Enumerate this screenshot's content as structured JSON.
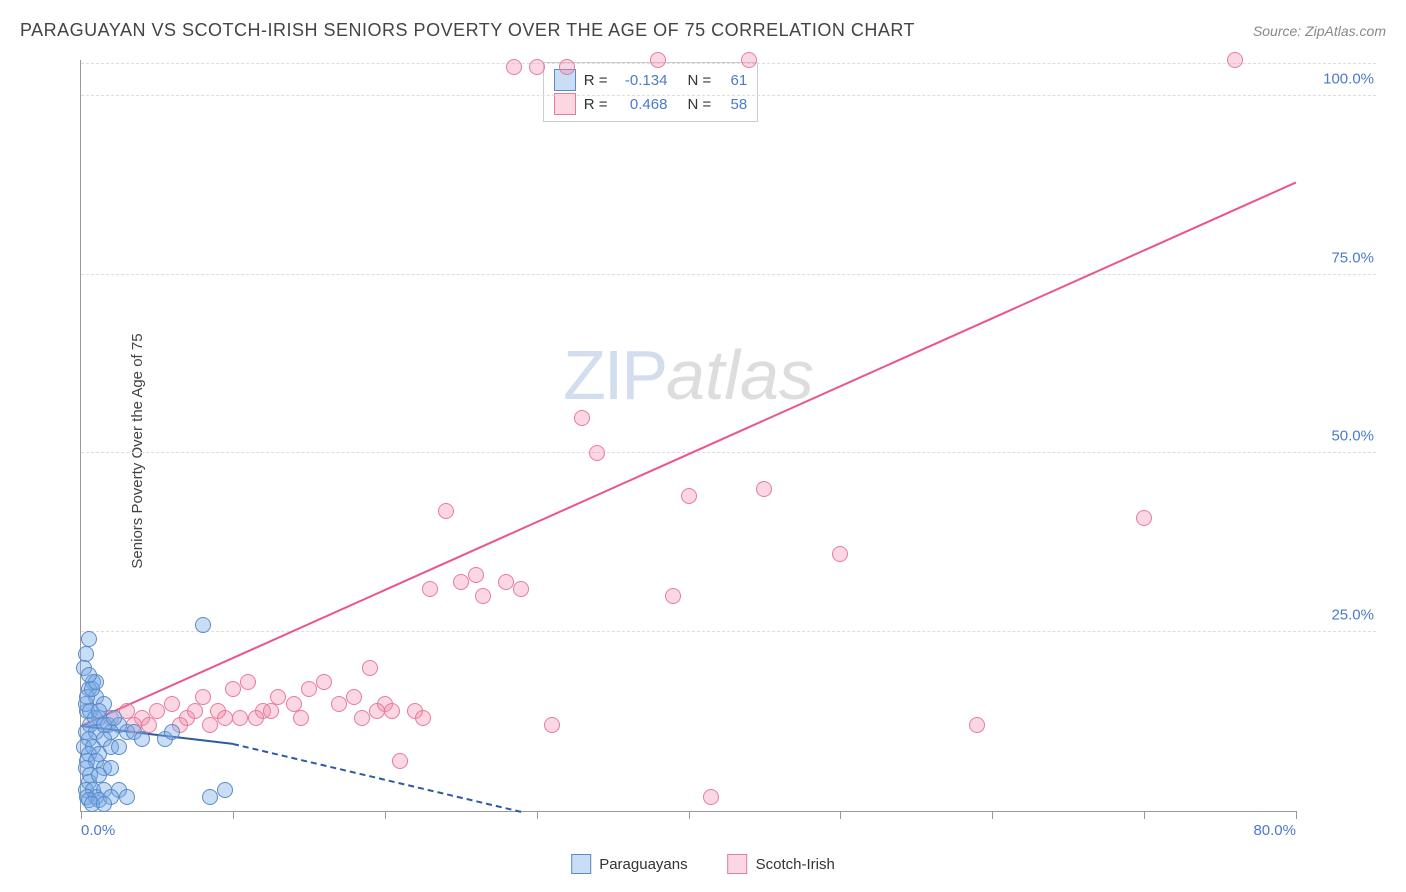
{
  "header": {
    "title": "PARAGUAYAN VS SCOTCH-IRISH SENIORS POVERTY OVER THE AGE OF 75 CORRELATION CHART",
    "source": "Source: ZipAtlas.com"
  },
  "chart": {
    "type": "scatter",
    "y_axis_label": "Seniors Poverty Over the Age of 75",
    "xlim": [
      0,
      80
    ],
    "ylim": [
      0,
      105
    ],
    "x_ticks": [
      0,
      10,
      20,
      30,
      40,
      50,
      60,
      70,
      80
    ],
    "x_tick_labels": {
      "0": "0.0%",
      "80": "80.0%"
    },
    "y_ticks": [
      25,
      50,
      75,
      100
    ],
    "y_tick_labels": {
      "25": "25.0%",
      "50": "50.0%",
      "75": "75.0%",
      "100": "100.0%"
    },
    "grid_color": "#dddddd",
    "axis_color": "#999999",
    "background_color": "#ffffff",
    "tick_label_color": "#4a7bc8",
    "tick_label_fontsize": 15,
    "axis_label_fontsize": 15,
    "marker_radius": 8,
    "marker_border_width": 1,
    "watermark": {
      "zip": "ZIP",
      "atlas": "atlas"
    }
  },
  "series": {
    "blue": {
      "label": "Paraguayans",
      "fill": "rgba(120,170,230,0.4)",
      "stroke": "#5a8ac8",
      "trend_color": "#2d5aa0",
      "trend": {
        "x1": 0,
        "y1": 12,
        "x2": 10,
        "y2": 9.5
      },
      "trend_dashed": {
        "x1": 10,
        "y1": 9.5,
        "x2": 29,
        "y2": 0
      },
      "points": [
        [
          0.3,
          22
        ],
        [
          0.5,
          24
        ],
        [
          0.2,
          20
        ],
        [
          0.8,
          18
        ],
        [
          0.5,
          17
        ],
        [
          1.0,
          16
        ],
        [
          1.5,
          15
        ],
        [
          0.4,
          14
        ],
        [
          1.2,
          13
        ],
        [
          0.6,
          12
        ],
        [
          1.8,
          12
        ],
        [
          2.5,
          12
        ],
        [
          0.3,
          11
        ],
        [
          1.0,
          11
        ],
        [
          2.0,
          11
        ],
        [
          0.5,
          10
        ],
        [
          1.5,
          10
        ],
        [
          3.0,
          11
        ],
        [
          0.2,
          9
        ],
        [
          0.8,
          9
        ],
        [
          2.0,
          9
        ],
        [
          0.5,
          8
        ],
        [
          1.2,
          8
        ],
        [
          2.5,
          9
        ],
        [
          0.4,
          7
        ],
        [
          1.0,
          7
        ],
        [
          0.3,
          6
        ],
        [
          1.5,
          6
        ],
        [
          0.6,
          5
        ],
        [
          2.0,
          6
        ],
        [
          0.5,
          4
        ],
        [
          1.2,
          5
        ],
        [
          0.3,
          3
        ],
        [
          0.8,
          3
        ],
        [
          1.5,
          3
        ],
        [
          0.4,
          2
        ],
        [
          1.0,
          2
        ],
        [
          2.5,
          3
        ],
        [
          0.5,
          1.5
        ],
        [
          1.2,
          1.5
        ],
        [
          2.0,
          2
        ],
        [
          0.7,
          1
        ],
        [
          1.5,
          1
        ],
        [
          3.0,
          2
        ],
        [
          0.3,
          15
        ],
        [
          0.6,
          14
        ],
        [
          0.9,
          13
        ],
        [
          1.2,
          14
        ],
        [
          1.5,
          12
        ],
        [
          2.2,
          13
        ],
        [
          0.4,
          16
        ],
        [
          0.7,
          17
        ],
        [
          1.0,
          18
        ],
        [
          0.5,
          19
        ],
        [
          3.5,
          11
        ],
        [
          4.0,
          10
        ],
        [
          5.5,
          10
        ],
        [
          6.0,
          11
        ],
        [
          8.0,
          26
        ],
        [
          8.5,
          2
        ],
        [
          9.5,
          3
        ]
      ]
    },
    "pink": {
      "label": "Scotch-Irish",
      "fill": "rgba(240,140,170,0.35)",
      "stroke": "#e87aa0",
      "trend_color": "#e85590",
      "trend": {
        "x1": 0,
        "y1": 12,
        "x2": 80,
        "y2": 88
      },
      "points": [
        [
          2,
          13
        ],
        [
          3,
          14
        ],
        [
          4,
          13
        ],
        [
          3.5,
          12
        ],
        [
          5,
          14
        ],
        [
          6,
          15
        ],
        [
          4.5,
          12
        ],
        [
          7,
          13
        ],
        [
          8,
          16
        ],
        [
          6.5,
          12
        ],
        [
          9,
          14
        ],
        [
          10,
          17
        ],
        [
          8.5,
          12
        ],
        [
          11,
          18
        ],
        [
          7.5,
          14
        ],
        [
          12,
          14
        ],
        [
          13,
          16
        ],
        [
          10.5,
          13
        ],
        [
          14,
          15
        ],
        [
          9.5,
          13
        ],
        [
          15,
          17
        ],
        [
          16,
          18
        ],
        [
          12.5,
          14
        ],
        [
          17,
          15
        ],
        [
          14.5,
          13
        ],
        [
          18,
          16
        ],
        [
          11.5,
          13
        ],
        [
          19,
          20
        ],
        [
          20,
          15
        ],
        [
          21,
          7
        ],
        [
          22,
          14
        ],
        [
          18.5,
          13
        ],
        [
          23,
          31
        ],
        [
          25,
          32
        ],
        [
          20.5,
          14
        ],
        [
          26,
          33
        ],
        [
          22.5,
          13
        ],
        [
          19.5,
          14
        ],
        [
          24,
          42
        ],
        [
          28,
          32
        ],
        [
          29,
          31
        ],
        [
          26.5,
          30
        ],
        [
          28.5,
          104
        ],
        [
          30,
          104
        ],
        [
          32,
          104
        ],
        [
          31,
          12
        ],
        [
          33,
          55
        ],
        [
          34,
          50
        ],
        [
          38,
          105
        ],
        [
          39,
          30
        ],
        [
          40,
          44
        ],
        [
          41.5,
          2
        ],
        [
          44,
          105
        ],
        [
          45,
          45
        ],
        [
          50,
          36
        ],
        [
          59,
          12
        ],
        [
          70,
          41
        ],
        [
          76,
          105
        ]
      ]
    }
  },
  "stats": {
    "rows": [
      {
        "series": "blue",
        "r_label": "R =",
        "r": "-0.134",
        "n_label": "N =",
        "n": "61"
      },
      {
        "series": "pink",
        "r_label": "R =",
        "r": "0.468",
        "n_label": "N =",
        "n": "58"
      }
    ]
  },
  "legend": {
    "items": [
      {
        "series": "blue",
        "label": "Paraguayans"
      },
      {
        "series": "pink",
        "label": "Scotch-Irish"
      }
    ]
  }
}
